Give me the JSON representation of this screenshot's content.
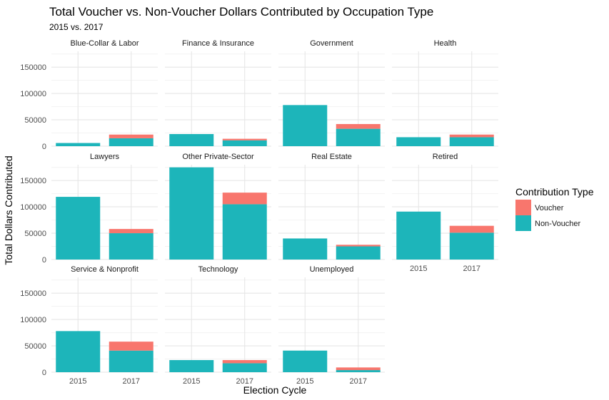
{
  "chart_data": {
    "type": "bar",
    "stacked": true,
    "title": "Total Voucher vs. Non-Voucher Dollars Contributed by Occupation Type",
    "subtitle": "2015 vs. 2017",
    "xlabel": "Election Cycle",
    "ylabel": "Total Dollars Contributed",
    "categories": [
      "2015",
      "2017"
    ],
    "ylim": [
      0,
      180000
    ],
    "yticks": [
      0,
      50000,
      100000,
      150000
    ],
    "ytick_labels": [
      "0",
      "50000",
      "100000",
      "150000"
    ],
    "grid": true,
    "legend": {
      "title": "Contribution Type",
      "position": "right",
      "items": [
        {
          "name": "Voucher",
          "color": "#F8766D"
        },
        {
          "name": "Non-Voucher",
          "color": "#1DB5BA"
        }
      ]
    },
    "facets": [
      {
        "name": "Blue-Collar & Labor",
        "values": {
          "2015": {
            "non_voucher": 6000,
            "voucher": 0
          },
          "2017": {
            "non_voucher": 15000,
            "voucher": 7000
          }
        }
      },
      {
        "name": "Finance & Insurance",
        "values": {
          "2015": {
            "non_voucher": 23000,
            "voucher": 0
          },
          "2017": {
            "non_voucher": 11000,
            "voucher": 3000
          }
        }
      },
      {
        "name": "Government",
        "values": {
          "2015": {
            "non_voucher": 78000,
            "voucher": 0
          },
          "2017": {
            "non_voucher": 33000,
            "voucher": 9000
          }
        }
      },
      {
        "name": "Health",
        "values": {
          "2015": {
            "non_voucher": 17000,
            "voucher": 0
          },
          "2017": {
            "non_voucher": 17000,
            "voucher": 5000
          }
        }
      },
      {
        "name": "Lawyers",
        "values": {
          "2015": {
            "non_voucher": 119000,
            "voucher": 0
          },
          "2017": {
            "non_voucher": 50000,
            "voucher": 8000
          }
        }
      },
      {
        "name": "Other Private-Sector",
        "values": {
          "2015": {
            "non_voucher": 175000,
            "voucher": 0
          },
          "2017": {
            "non_voucher": 105000,
            "voucher": 22000
          }
        }
      },
      {
        "name": "Real Estate",
        "values": {
          "2015": {
            "non_voucher": 40000,
            "voucher": 0
          },
          "2017": {
            "non_voucher": 25000,
            "voucher": 3000
          }
        }
      },
      {
        "name": "Retired",
        "values": {
          "2015": {
            "non_voucher": 91000,
            "voucher": 0
          },
          "2017": {
            "non_voucher": 51000,
            "voucher": 13000
          }
        }
      },
      {
        "name": "Service & Nonprofit",
        "values": {
          "2015": {
            "non_voucher": 78000,
            "voucher": 0
          },
          "2017": {
            "non_voucher": 41000,
            "voucher": 17000
          }
        }
      },
      {
        "name": "Technology",
        "values": {
          "2015": {
            "non_voucher": 23000,
            "voucher": 0
          },
          "2017": {
            "non_voucher": 17000,
            "voucher": 6000
          }
        }
      },
      {
        "name": "Unemployed",
        "values": {
          "2015": {
            "non_voucher": 41000,
            "voucher": 0
          },
          "2017": {
            "non_voucher": 4000,
            "voucher": 5000
          }
        }
      }
    ]
  }
}
